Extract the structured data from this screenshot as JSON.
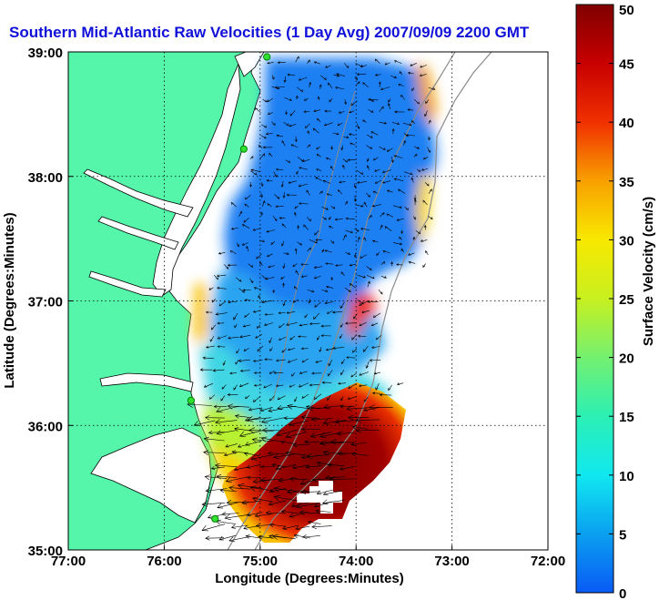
{
  "chart_data": {
    "type": "heatmap",
    "title": "Southern Mid-Atlantic Raw Velocities (1 Day Avg) 2007/09/09 2200 GMT",
    "xlabel": "Longitude (Degrees:Minutes)",
    "ylabel": "Latitude (Degrees:Minutes)",
    "xlim": [
      -77,
      -72
    ],
    "ylim": [
      35,
      39
    ],
    "x_ticks": [
      {
        "value": -77,
        "label": "77:00"
      },
      {
        "value": -76,
        "label": "76:00"
      },
      {
        "value": -75,
        "label": "75:00"
      },
      {
        "value": -74,
        "label": "74:00"
      },
      {
        "value": -73,
        "label": "73:00"
      },
      {
        "value": -72,
        "label": "72:00"
      }
    ],
    "y_ticks": [
      {
        "value": 35,
        "label": "35:00"
      },
      {
        "value": 36,
        "label": "36:00"
      },
      {
        "value": 37,
        "label": "37:00"
      },
      {
        "value": 38,
        "label": "38:00"
      },
      {
        "value": 39,
        "label": "39:00"
      }
    ],
    "grid": true,
    "colorbar": {
      "label": "Surface Velocity (cm/s)",
      "min": 0,
      "max": 50,
      "ticks": [
        {
          "value": 0,
          "label": "0"
        },
        {
          "value": 5,
          "label": "5"
        },
        {
          "value": 10,
          "label": "10"
        },
        {
          "value": 15,
          "label": "15"
        },
        {
          "value": 20,
          "label": "20"
        },
        {
          "value": 25,
          "label": "25"
        },
        {
          "value": 30,
          "label": "30"
        },
        {
          "value": 35,
          "label": "35"
        },
        {
          "value": 40,
          "label": "40"
        },
        {
          "value": 45,
          "label": "45"
        },
        {
          "value": 50,
          "label": "50"
        }
      ],
      "colors": [
        "#0a5af5",
        "#0aa0f0",
        "#10e8f0",
        "#2cf0b4",
        "#74f070",
        "#c8f020",
        "#f8e800",
        "#f8a000",
        "#f03000",
        "#c80000",
        "#800000"
      ]
    },
    "speed_regions": [
      {
        "name": "",
        "lon": [
          -75.3,
          -73.2
        ],
        "lat": [
          37.2,
          38.95
        ],
        "speed": 8
      },
      {
        "name": "",
        "lon": [
          -75.3,
          -74.5
        ],
        "lat": [
          36.4,
          37.4
        ],
        "speed": 11
      },
      {
        "name": "",
        "lon": [
          -74.6,
          -73.7
        ],
        "lat": [
          36.4,
          37.2
        ],
        "speed": 14
      },
      {
        "name": "",
        "lon": [
          -75.4,
          -74.2
        ],
        "lat": [
          35.9,
          36.5
        ],
        "speed": 16
      },
      {
        "name": "",
        "lon": [
          -75.1,
          -73.7
        ],
        "lat": [
          35.3,
          36.3
        ],
        "speed": 47
      }
    ],
    "coast_stations": [
      {
        "lon": -74.93,
        "lat": 38.96
      },
      {
        "lon": -75.17,
        "lat": 38.22
      },
      {
        "lon": -75.72,
        "lat": 36.2
      },
      {
        "lon": -75.47,
        "lat": 35.25
      }
    ],
    "land_color": "#55f5aa",
    "water_background": "#ffffff"
  }
}
